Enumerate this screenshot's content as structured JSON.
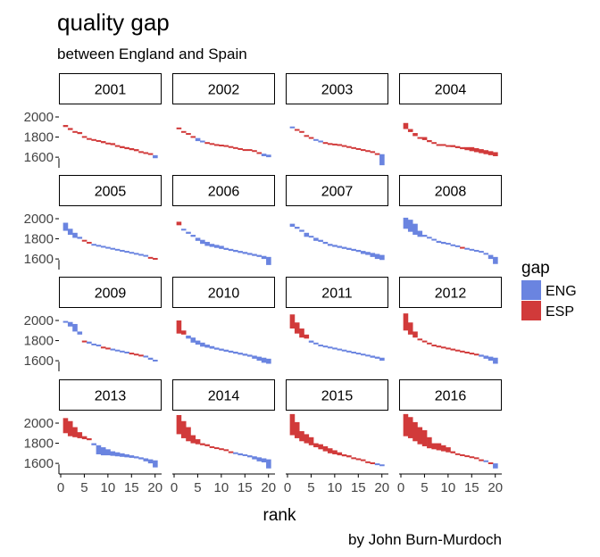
{
  "title": "quality gap",
  "subtitle": "between England and Spain",
  "caption": "by John Burn-Murdoch",
  "chart_data": {
    "type": "bar",
    "layout": "faceted",
    "facets": [
      "2001",
      "2002",
      "2003",
      "2004",
      "2005",
      "2006",
      "2007",
      "2008",
      "2009",
      "2010",
      "2011",
      "2012",
      "2013",
      "2014",
      "2015",
      "2016"
    ],
    "xlabel": "rank",
    "ylabel": "",
    "xlim": [
      0,
      21
    ],
    "ylim": [
      1530,
      2080
    ],
    "x_ticks": [
      0,
      5,
      10,
      15,
      20
    ],
    "y_ticks": [
      1600,
      1800,
      2000
    ],
    "grid": false,
    "legend": {
      "title": "gap",
      "position": "right",
      "items": [
        {
          "name": "ENG",
          "color": "#6a84e0"
        },
        {
          "name": "ESP",
          "color": "#d13a3a"
        }
      ]
    },
    "series": [
      {
        "name": "ENG",
        "values": [
          [
            1900,
            1870,
            1850,
            1830,
            1810,
            1790,
            1770,
            1755,
            1740,
            1730,
            1720,
            1705,
            1690,
            1680,
            1670,
            1660,
            1650,
            1640,
            1630,
            1620
          ],
          [
            1890,
            1850,
            1830,
            1810,
            1790,
            1765,
            1750,
            1740,
            1730,
            1720,
            1710,
            1700,
            1690,
            1685,
            1675,
            1665,
            1655,
            1645,
            1635,
            1625
          ],
          [
            1905,
            1880,
            1850,
            1820,
            1800,
            1780,
            1765,
            1750,
            1740,
            1730,
            1720,
            1710,
            1700,
            1690,
            1680,
            1670,
            1660,
            1650,
            1640,
            1630
          ],
          [
            1880,
            1850,
            1810,
            1790,
            1770,
            1750,
            1740,
            1730,
            1720,
            1710,
            1700,
            1690,
            1680,
            1670,
            1660,
            1650,
            1640,
            1630,
            1620,
            1610
          ],
          [
            1960,
            1900,
            1860,
            1820,
            1790,
            1770,
            1750,
            1740,
            1730,
            1720,
            1710,
            1700,
            1690,
            1680,
            1670,
            1660,
            1650,
            1640,
            1620,
            1610
          ],
          [
            1935,
            1900,
            1870,
            1840,
            1810,
            1790,
            1770,
            1750,
            1740,
            1730,
            1710,
            1700,
            1690,
            1680,
            1670,
            1660,
            1650,
            1640,
            1630,
            1620
          ],
          [
            1950,
            1920,
            1890,
            1860,
            1830,
            1810,
            1790,
            1770,
            1750,
            1740,
            1730,
            1720,
            1710,
            1700,
            1690,
            1680,
            1670,
            1660,
            1650,
            1640
          ],
          [
            2010,
            1990,
            1950,
            1880,
            1840,
            1820,
            1800,
            1780,
            1770,
            1760,
            1745,
            1735,
            1720,
            1710,
            1700,
            1690,
            1680,
            1660,
            1640,
            1620
          ],
          [
            1995,
            1985,
            1965,
            1890,
            1800,
            1790,
            1770,
            1760,
            1740,
            1730,
            1720,
            1710,
            1700,
            1690,
            1680,
            1670,
            1660,
            1650,
            1630,
            1610
          ],
          [
            1870,
            1860,
            1850,
            1830,
            1800,
            1780,
            1760,
            1745,
            1730,
            1720,
            1710,
            1700,
            1690,
            1680,
            1670,
            1660,
            1650,
            1640,
            1630,
            1620
          ],
          [
            1920,
            1870,
            1830,
            1820,
            1800,
            1780,
            1760,
            1750,
            1740,
            1730,
            1720,
            1710,
            1700,
            1690,
            1680,
            1670,
            1660,
            1650,
            1640,
            1630
          ],
          [
            1900,
            1860,
            1830,
            1810,
            1790,
            1780,
            1760,
            1750,
            1740,
            1730,
            1720,
            1710,
            1700,
            1690,
            1680,
            1670,
            1660,
            1650,
            1640,
            1630
          ],
          [
            1900,
            1870,
            1860,
            1850,
            1840,
            1830,
            1800,
            1780,
            1760,
            1740,
            1720,
            1710,
            1700,
            1690,
            1680,
            1670,
            1660,
            1650,
            1640,
            1630
          ],
          [
            1890,
            1850,
            1820,
            1800,
            1790,
            1780,
            1770,
            1760,
            1750,
            1740,
            1730,
            1720,
            1710,
            1700,
            1690,
            1680,
            1670,
            1660,
            1650,
            1640
          ],
          [
            1880,
            1850,
            1820,
            1800,
            1780,
            1760,
            1740,
            1720,
            1700,
            1690,
            1680,
            1670,
            1660,
            1650,
            1640,
            1630,
            1620,
            1610,
            1600,
            1590
          ],
          [
            1870,
            1850,
            1820,
            1790,
            1770,
            1750,
            1740,
            1730,
            1720,
            1710,
            1700,
            1690,
            1680,
            1670,
            1660,
            1650,
            1640,
            1630,
            1610,
            1600
          ]
        ]
      },
      {
        "name": "ESP",
        "values": [
          [
            1920,
            1890,
            1860,
            1850,
            1810,
            1790,
            1780,
            1770,
            1760,
            1745,
            1740,
            1720,
            1710,
            1700,
            1690,
            1680,
            1660,
            1650,
            1640,
            1590
          ],
          [
            1895,
            1860,
            1840,
            1810,
            1760,
            1760,
            1750,
            1740,
            1730,
            1725,
            1720,
            1710,
            1700,
            1690,
            1680,
            1680,
            1670,
            1650,
            1610,
            1600
          ],
          [
            1890,
            1880,
            1860,
            1820,
            1800,
            1770,
            1760,
            1750,
            1740,
            1735,
            1730,
            1720,
            1710,
            1700,
            1690,
            1680,
            1670,
            1660,
            1640,
            1520
          ],
          [
            1940,
            1880,
            1840,
            1800,
            1800,
            1770,
            1750,
            1730,
            1730,
            1720,
            1720,
            1710,
            1700,
            1700,
            1700,
            1690,
            1680,
            1670,
            1660,
            1650
          ],
          [
            1880,
            1840,
            1810,
            1800,
            1790,
            1770,
            1740,
            1730,
            1720,
            1710,
            1700,
            1690,
            1680,
            1670,
            1660,
            1650,
            1640,
            1630,
            1620,
            1610
          ],
          [
            1970,
            1890,
            1850,
            1820,
            1780,
            1750,
            1730,
            1720,
            1710,
            1700,
            1690,
            1680,
            1670,
            1660,
            1650,
            1640,
            1630,
            1620,
            1600,
            1540
          ],
          [
            1920,
            1900,
            1870,
            1820,
            1820,
            1780,
            1770,
            1750,
            1730,
            1720,
            1710,
            1700,
            1690,
            1680,
            1670,
            1650,
            1640,
            1620,
            1600,
            1590
          ],
          [
            1900,
            1870,
            1840,
            1820,
            1820,
            1810,
            1790,
            1760,
            1750,
            1750,
            1740,
            1730,
            1720,
            1700,
            1690,
            1680,
            1670,
            1650,
            1600,
            1550
          ],
          [
            1980,
            1940,
            1890,
            1860,
            1800,
            1770,
            1760,
            1750,
            1740,
            1730,
            1710,
            1700,
            1690,
            1680,
            1680,
            1670,
            1660,
            1640,
            1610,
            1600
          ],
          [
            2000,
            1900,
            1820,
            1780,
            1760,
            1740,
            1730,
            1720,
            1710,
            1700,
            1690,
            1680,
            1670,
            1660,
            1650,
            1640,
            1620,
            1600,
            1580,
            1570
          ],
          [
            2060,
            1980,
            1920,
            1860,
            1780,
            1770,
            1750,
            1740,
            1730,
            1720,
            1710,
            1700,
            1690,
            1680,
            1670,
            1660,
            1650,
            1630,
            1620,
            1600
          ],
          [
            2070,
            1980,
            1890,
            1820,
            1800,
            1780,
            1760,
            1750,
            1740,
            1730,
            1720,
            1710,
            1700,
            1690,
            1680,
            1670,
            1640,
            1620,
            1600,
            1570
          ],
          [
            2050,
            2020,
            1960,
            1910,
            1870,
            1850,
            1780,
            1690,
            1680,
            1680,
            1675,
            1670,
            1665,
            1660,
            1655,
            1650,
            1640,
            1620,
            1600,
            1560
          ],
          [
            2080,
            2020,
            1960,
            1880,
            1840,
            1800,
            1790,
            1770,
            1760,
            1750,
            1740,
            1720,
            1700,
            1680,
            1680,
            1660,
            1640,
            1620,
            1610,
            1550
          ],
          [
            2090,
            2010,
            1920,
            1890,
            1860,
            1800,
            1790,
            1770,
            1750,
            1730,
            1710,
            1690,
            1680,
            1660,
            1650,
            1640,
            1620,
            1610,
            1590,
            1580
          ],
          [
            2090,
            2060,
            2010,
            1960,
            1930,
            1860,
            1800,
            1800,
            1780,
            1760,
            1720,
            1700,
            1690,
            1680,
            1670,
            1660,
            1640,
            1620,
            1610,
            1550
          ]
        ]
      }
    ]
  }
}
